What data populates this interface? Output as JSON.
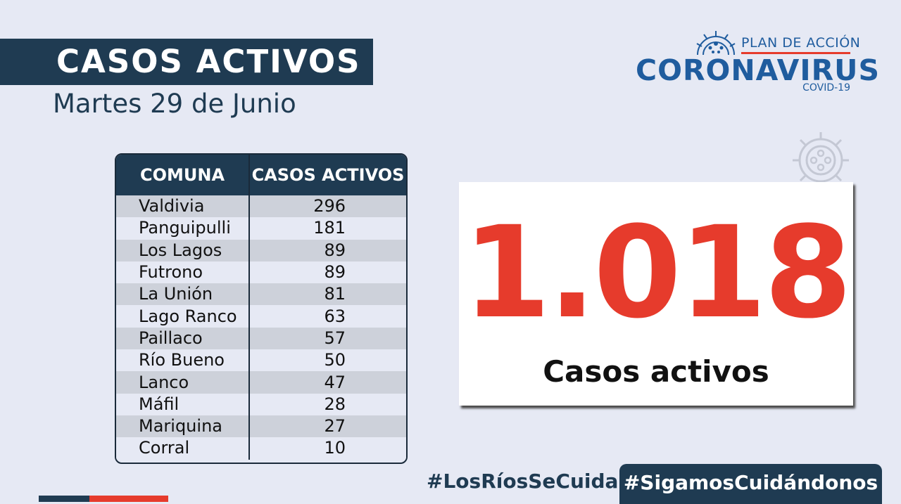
{
  "header": {
    "title": "CASOS ACTIVOS",
    "date": "Martes 29 de Junio"
  },
  "logo": {
    "line1": "PLAN DE ACCIÓN",
    "line2": "CORONAVIRUS",
    "line3": "COVID-19",
    "icon": "virus-icon"
  },
  "table": {
    "headers": [
      "COMUNA",
      "CASOS ACTIVOS"
    ],
    "rows": [
      {
        "comuna": "Valdivia",
        "casos": "296"
      },
      {
        "comuna": "Panguipulli",
        "casos": "181"
      },
      {
        "comuna": "Los Lagos",
        "casos": "89"
      },
      {
        "comuna": "Futrono",
        "casos": "89"
      },
      {
        "comuna": "La Unión",
        "casos": "81"
      },
      {
        "comuna": "Lago Ranco",
        "casos": "63"
      },
      {
        "comuna": "Paillaco",
        "casos": "57"
      },
      {
        "comuna": "Río Bueno",
        "casos": "50"
      },
      {
        "comuna": "Lanco",
        "casos": "47"
      },
      {
        "comuna": "Máfil",
        "casos": "28"
      },
      {
        "comuna": "Mariquina",
        "casos": "27"
      },
      {
        "comuna": "Corral",
        "casos": "10"
      }
    ]
  },
  "summary": {
    "total": "1.018",
    "label": "Casos activos"
  },
  "footer": {
    "hashtag1": "#LosRíosSeCuida",
    "hashtag2": "#SigamosCuidándonos"
  },
  "colors": {
    "navy": "#1f3b52",
    "red": "#e63b2c",
    "blue": "#1f5c9e",
    "background": "#e6e9f4"
  }
}
